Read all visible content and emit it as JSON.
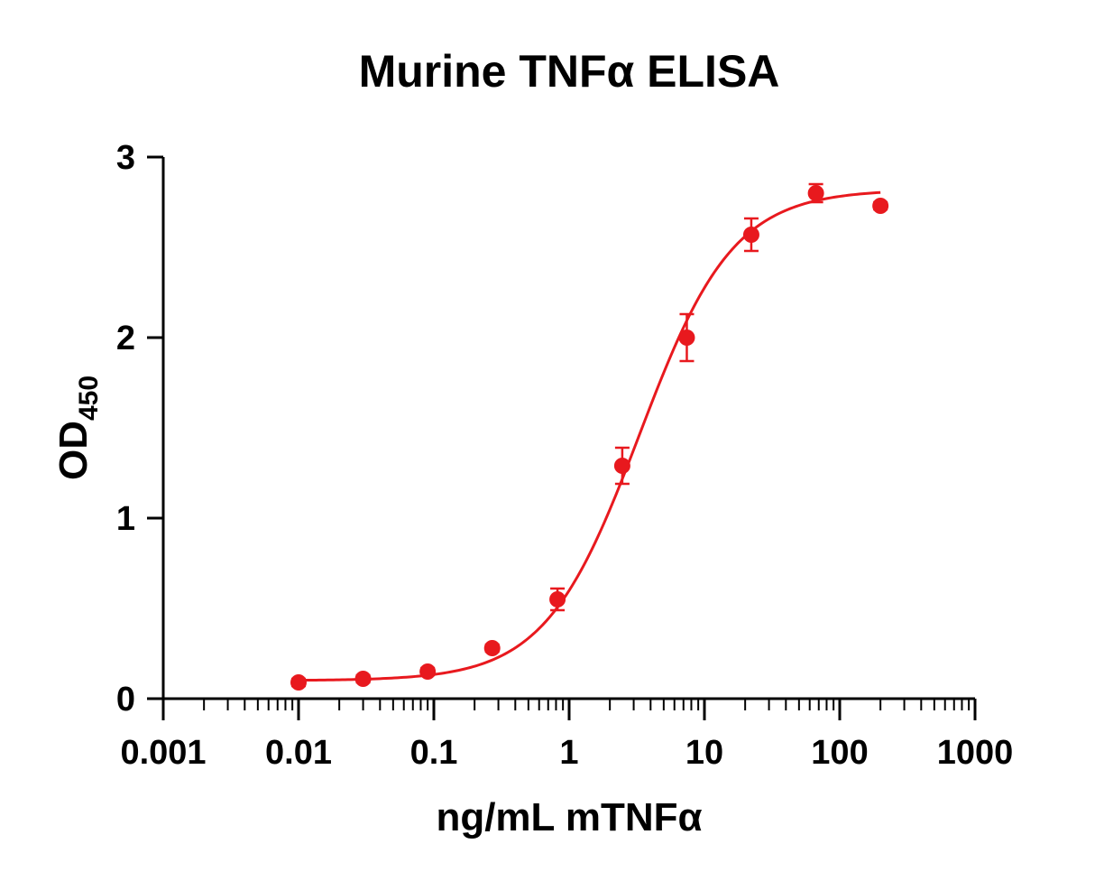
{
  "chart_data": {
    "type": "scatter",
    "title": "Murine TNFα ELISA",
    "xlabel": "ng/mL mTNFα",
    "ylabel_main": "OD",
    "ylabel_sub": "450",
    "x_scale": "log",
    "xlim": [
      0.001,
      1000
    ],
    "ylim": [
      0,
      3
    ],
    "x_ticks": [
      0.001,
      0.01,
      0.1,
      1,
      10,
      100,
      1000
    ],
    "x_tick_labels": [
      "0.001",
      "0.01",
      "0.1",
      "1",
      "10",
      "100",
      "1000"
    ],
    "y_ticks": [
      0,
      1,
      2,
      3
    ],
    "y_tick_labels": [
      "0",
      "1",
      "2",
      "3"
    ],
    "grid": false,
    "legend": "none",
    "color": "#e8191e",
    "series": [
      {
        "x": [
          0.01,
          0.03,
          0.09,
          0.27,
          0.82,
          2.47,
          7.41,
          22.2,
          66.7,
          200
        ],
        "y": [
          0.09,
          0.11,
          0.15,
          0.28,
          0.55,
          1.29,
          2.0,
          2.57,
          2.8,
          2.73
        ],
        "error": [
          0.02,
          0.02,
          0.02,
          0.02,
          0.06,
          0.1,
          0.13,
          0.09,
          0.05,
          0.02
        ]
      }
    ],
    "fit": {
      "model": "4PL",
      "bottom": 0.1,
      "top": 2.82,
      "ec50": 3.3,
      "hill": 1.25,
      "x_range": [
        0.01,
        200
      ]
    }
  }
}
